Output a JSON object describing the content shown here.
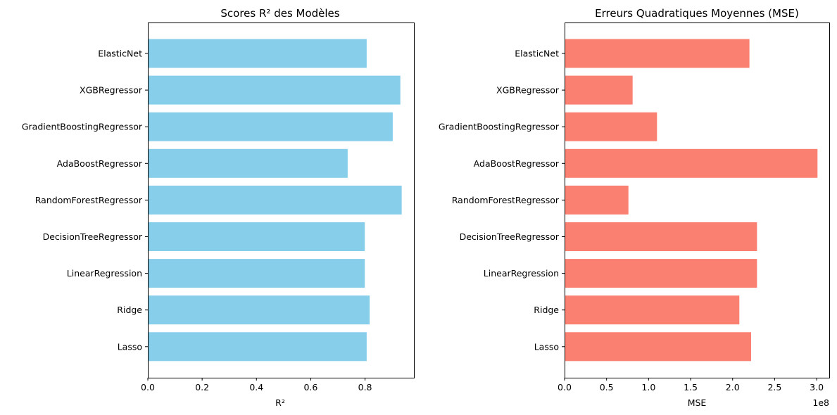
{
  "chart_data": [
    {
      "type": "bar",
      "orientation": "horizontal",
      "title": "Scores R² des Modèles",
      "xlabel": "R²",
      "ylabel": "",
      "xlim": [
        0,
        0.98
      ],
      "x_ticks": [
        "0.0",
        "0.2",
        "0.4",
        "0.6",
        "0.8"
      ],
      "x_tick_values": [
        0.0,
        0.2,
        0.4,
        0.6,
        0.8
      ],
      "multiplier_label": "",
      "color": "#87CEEB",
      "categories": [
        "ElasticNet",
        "XGBRegressor",
        "GradientBoostingRegressor",
        "AdaBoostRegressor",
        "RandomForestRegressor",
        "DecisionTreeRegressor",
        "LinearRegression",
        "Ridge",
        "Lasso"
      ],
      "values": [
        0.806,
        0.93,
        0.902,
        0.736,
        0.935,
        0.799,
        0.799,
        0.817,
        0.806
      ],
      "grid": false
    },
    {
      "type": "bar",
      "orientation": "horizontal",
      "title": "Erreurs Quadratiques Moyennes (MSE)",
      "xlabel": "MSE",
      "ylabel": "",
      "xlim": [
        0,
        3.15
      ],
      "x_ticks": [
        "0.0",
        "0.5",
        "1.0",
        "1.5",
        "2.0",
        "2.5",
        "3.0"
      ],
      "x_tick_values": [
        0.0,
        0.5,
        1.0,
        1.5,
        2.0,
        2.5,
        3.0
      ],
      "multiplier_label": "1e8",
      "color": "#FA8072",
      "categories": [
        "ElasticNet",
        "XGBRegressor",
        "GradientBoostingRegressor",
        "AdaBoostRegressor",
        "RandomForestRegressor",
        "DecisionTreeRegressor",
        "LinearRegression",
        "Ridge",
        "Lasso"
      ],
      "values": [
        2.2,
        0.81,
        1.1,
        3.01,
        0.76,
        2.29,
        2.29,
        2.08,
        2.22
      ],
      "grid": false
    }
  ]
}
